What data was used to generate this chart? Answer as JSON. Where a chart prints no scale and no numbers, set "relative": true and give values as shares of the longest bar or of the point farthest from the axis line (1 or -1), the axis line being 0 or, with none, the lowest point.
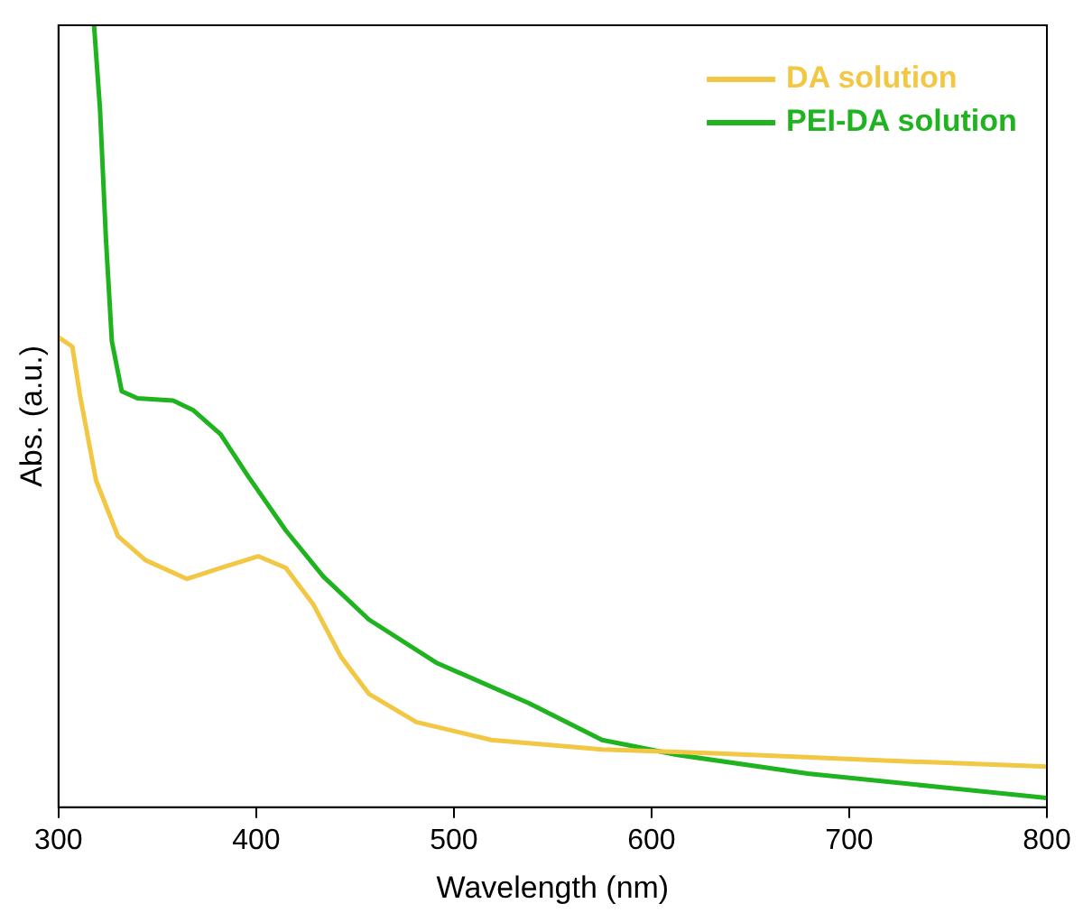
{
  "chart_data": {
    "type": "line",
    "xlabel": "Wavelength (nm)",
    "ylabel": "Abs. (a.u.)",
    "relative": true,
    "xlim": [
      300,
      800
    ],
    "xticks": [
      300,
      400,
      500,
      600,
      700,
      800
    ],
    "legend": "top right",
    "grid": false,
    "marker": "none",
    "line_style": "solid",
    "series": [
      {
        "name": "DA solution",
        "color": "#f2c744",
        "x": [
          300,
          307,
          311,
          319,
          330,
          344,
          365,
          382,
          401,
          415,
          429,
          443,
          457,
          481,
          519,
          575,
          632,
          726,
          800
        ],
        "values": [
          0.601,
          0.589,
          0.525,
          0.418,
          0.347,
          0.316,
          0.292,
          0.306,
          0.321,
          0.306,
          0.259,
          0.192,
          0.145,
          0.109,
          0.086,
          0.074,
          0.069,
          0.059,
          0.052
        ]
      },
      {
        "name": "PEI-DA solution",
        "color": "#1fb31f",
        "x": [
          318,
          321,
          324,
          327,
          332,
          340,
          358,
          368,
          382,
          396,
          415,
          434,
          457,
          491,
          538,
          575,
          613,
          679,
          745,
          800
        ],
        "values": [
          1.0,
          0.893,
          0.727,
          0.596,
          0.532,
          0.523,
          0.52,
          0.508,
          0.477,
          0.423,
          0.354,
          0.295,
          0.24,
          0.185,
          0.133,
          0.086,
          0.067,
          0.043,
          0.026,
          0.012
        ]
      }
    ]
  }
}
